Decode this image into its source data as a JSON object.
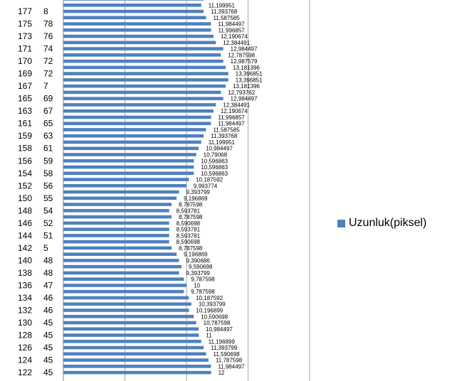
{
  "chart_data": {
    "type": "bar",
    "orientation": "horizontal",
    "legend_position": "right",
    "grid": true,
    "bar_color": "#4f81bd",
    "xlim": [
      0,
      20
    ],
    "series": [
      {
        "name": "Uzunluk(piksel)"
      }
    ],
    "rows": [
      {
        "a": "",
        "b": "",
        "value": "",
        "v": 11.39
      },
      {
        "a": "",
        "b": "",
        "value": "11,199951",
        "v": 11.199951
      },
      {
        "a": "177",
        "b": "8",
        "value": "11,393768",
        "v": 11.393768
      },
      {
        "a": "",
        "b": "",
        "value": "11,587585",
        "v": 11.587585
      },
      {
        "a": "175",
        "b": "78",
        "value": "11,984497",
        "v": 11.984497
      },
      {
        "a": "",
        "b": "",
        "value": "11,996857",
        "v": 11.996857
      },
      {
        "a": "173",
        "b": "76",
        "value": "12,190674",
        "v": 12.190674
      },
      {
        "a": "",
        "b": "",
        "value": "12,384491",
        "v": 12.384491
      },
      {
        "a": "171",
        "b": "74",
        "value": "12,984497",
        "v": 12.984497
      },
      {
        "a": "",
        "b": "",
        "value": "12,787598",
        "v": 12.787598
      },
      {
        "a": "170",
        "b": "72",
        "value": "12,987579",
        "v": 12.987579
      },
      {
        "a": "",
        "b": "",
        "value": "13,181396",
        "v": 13.181396
      },
      {
        "a": "169",
        "b": "72",
        "value": "13,396851",
        "v": 13.396851
      },
      {
        "a": "",
        "b": "",
        "value": "13,396851",
        "v": 13.396851
      },
      {
        "a": "167",
        "b": "7",
        "value": "13,181396",
        "v": 13.181396
      },
      {
        "a": "",
        "b": "",
        "value": "12,793762",
        "v": 12.793762
      },
      {
        "a": "165",
        "b": "69",
        "value": "12,984497",
        "v": 12.984497
      },
      {
        "a": "",
        "b": "",
        "value": "12,384491",
        "v": 12.384491
      },
      {
        "a": "163",
        "b": "67",
        "value": "12,190674",
        "v": 12.190674
      },
      {
        "a": "",
        "b": "",
        "value": "11,996857",
        "v": 11.996857
      },
      {
        "a": "161",
        "b": "65",
        "value": "11,984497",
        "v": 11.984497
      },
      {
        "a": "",
        "b": "",
        "value": "11,587585",
        "v": 11.587585
      },
      {
        "a": "159",
        "b": "63",
        "value": "11,393768",
        "v": 11.393768
      },
      {
        "a": "",
        "b": "",
        "value": "11,199951",
        "v": 11.199951
      },
      {
        "a": "158",
        "b": "61",
        "value": "10,984497",
        "v": 10.984497
      },
      {
        "a": "",
        "b": "",
        "value": "10,79068",
        "v": 10.79068
      },
      {
        "a": "156",
        "b": "59",
        "value": "10,596863",
        "v": 10.596863
      },
      {
        "a": "",
        "b": "",
        "value": "10,596863",
        "v": 10.596863
      },
      {
        "a": "154",
        "b": "58",
        "value": "10,596863",
        "v": 10.596863
      },
      {
        "a": "",
        "b": "",
        "value": "10,187592",
        "v": 10.187592
      },
      {
        "a": "152",
        "b": "56",
        "value": "9,993774",
        "v": 9.993774
      },
      {
        "a": "",
        "b": "",
        "value": "9,393799",
        "v": 9.393799
      },
      {
        "a": "150",
        "b": "55",
        "value": "9,196869",
        "v": 9.196869
      },
      {
        "a": "",
        "b": "",
        "value": "8,787598",
        "v": 8.787598
      },
      {
        "a": "148",
        "b": "54",
        "value": "8,593781",
        "v": 8.593781
      },
      {
        "a": "",
        "b": "",
        "value": "8,787598",
        "v": 8.787598
      },
      {
        "a": "146",
        "b": "52",
        "value": "8,590698",
        "v": 8.590698
      },
      {
        "a": "",
        "b": "",
        "value": "8,593781",
        "v": 8.593781
      },
      {
        "a": "144",
        "b": "51",
        "value": "8,593781",
        "v": 8.593781
      },
      {
        "a": "",
        "b": "",
        "value": "8,590698",
        "v": 8.590698
      },
      {
        "a": "142",
        "b": "5",
        "value": "8,787598",
        "v": 8.787598
      },
      {
        "a": "",
        "b": "",
        "value": "9,196869",
        "v": 9.196869
      },
      {
        "a": "140",
        "b": "48",
        "value": "9,390686",
        "v": 9.390686
      },
      {
        "a": "",
        "b": "",
        "value": "9,590698",
        "v": 9.590698
      },
      {
        "a": "138",
        "b": "48",
        "value": "9,393799",
        "v": 9.393799
      },
      {
        "a": "",
        "b": "",
        "value": "9,787598",
        "v": 9.787598
      },
      {
        "a": "136",
        "b": "47",
        "value": "10",
        "v": 10
      },
      {
        "a": "",
        "b": "",
        "value": "9,787598",
        "v": 9.787598
      },
      {
        "a": "134",
        "b": "46",
        "value": "10,187592",
        "v": 10.187592
      },
      {
        "a": "",
        "b": "",
        "value": "10,393799",
        "v": 10.393799
      },
      {
        "a": "132",
        "b": "46",
        "value": "10,196899",
        "v": 10.196899
      },
      {
        "a": "",
        "b": "",
        "value": "10,590698",
        "v": 10.590698
      },
      {
        "a": "130",
        "b": "45",
        "value": "10,787598",
        "v": 10.787598
      },
      {
        "a": "",
        "b": "",
        "value": "10,984497",
        "v": 10.984497
      },
      {
        "a": "128",
        "b": "45",
        "value": "11",
        "v": 11
      },
      {
        "a": "",
        "b": "",
        "value": "11,196899",
        "v": 11.196899
      },
      {
        "a": "126",
        "b": "45",
        "value": "11,393799",
        "v": 11.393799
      },
      {
        "a": "",
        "b": "",
        "value": "11,590698",
        "v": 11.590698
      },
      {
        "a": "124",
        "b": "45",
        "value": "11,787598",
        "v": 11.787598
      },
      {
        "a": "",
        "b": "",
        "value": "11,984497",
        "v": 11.984497
      },
      {
        "a": "122",
        "b": "45",
        "value": "12",
        "v": 12
      }
    ]
  }
}
